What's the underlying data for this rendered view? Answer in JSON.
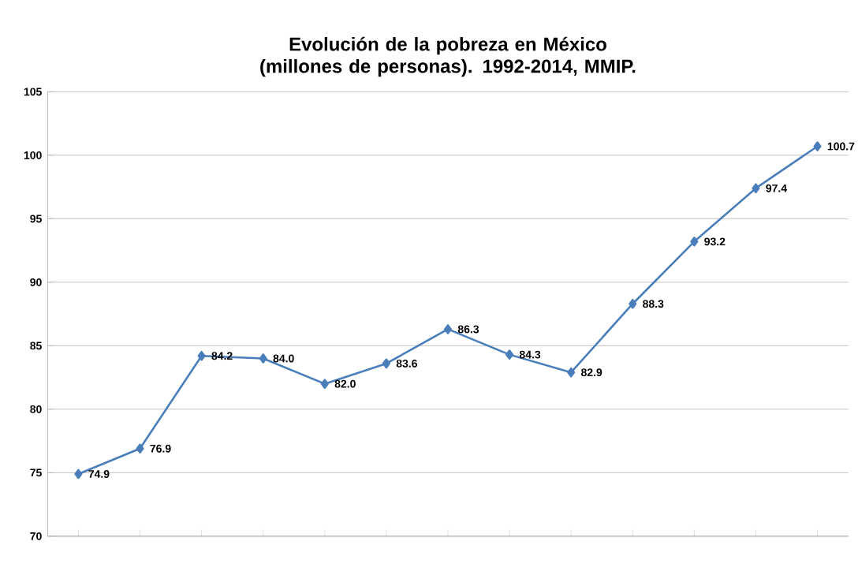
{
  "chart_data": {
    "type": "line",
    "title": "Evolución de la pobreza en México (millones de personas).  1992-2014, MMIP.",
    "categories": [
      null,
      null,
      null,
      null,
      null,
      null,
      null,
      null,
      null,
      null,
      null,
      null,
      null
    ],
    "series": [
      {
        "color": "#4a7ebb",
        "values": [
          74.9,
          76.9,
          84.2,
          84.0,
          82.0,
          83.6,
          86.3,
          84.3,
          82.9,
          88.3,
          93.2,
          97.4,
          100.7
        ],
        "value_labels": [
          "74.9",
          "76.9",
          "84.2",
          "84.0",
          "82.0",
          "83.6",
          "86.3",
          "84.3",
          "82.9",
          "88.3",
          "93.2",
          "97.4",
          "100.7"
        ]
      }
    ],
    "ylim": [
      70,
      105
    ],
    "yticks": [
      70,
      75,
      80,
      85,
      90,
      95,
      100,
      105
    ],
    "grid": "y",
    "marker": "diamond",
    "line_style": "solid"
  }
}
